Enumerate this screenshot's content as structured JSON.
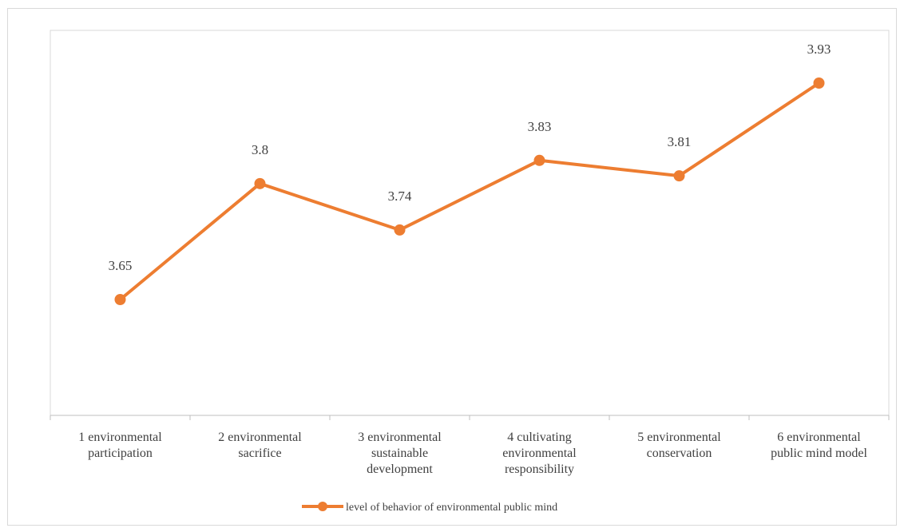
{
  "chart_data": {
    "type": "line",
    "title": "",
    "xlabel": "",
    "ylabel": "",
    "ylim": [
      3.4,
      4.0
    ],
    "grid": false,
    "legend_position": "bottom",
    "categories": [
      [
        "1  environmental",
        "participation"
      ],
      [
        "2  environmental",
        "sacrifice"
      ],
      [
        "3  environmental",
        "sustainable",
        "development"
      ],
      [
        "4  cultivating",
        "environmental",
        "responsibility"
      ],
      [
        "5 environmental",
        "conservation"
      ],
      [
        "6 environmental",
        "public mind model"
      ]
    ],
    "series": [
      {
        "name": "level of behavior of environmental public mind",
        "values": [
          3.65,
          3.8,
          3.74,
          3.83,
          3.81,
          3.93
        ],
        "data_labels": [
          "3.65",
          "3.8",
          "3.74",
          "3.83",
          "3.81",
          "3.93"
        ],
        "color": "#ED7D31"
      }
    ]
  }
}
